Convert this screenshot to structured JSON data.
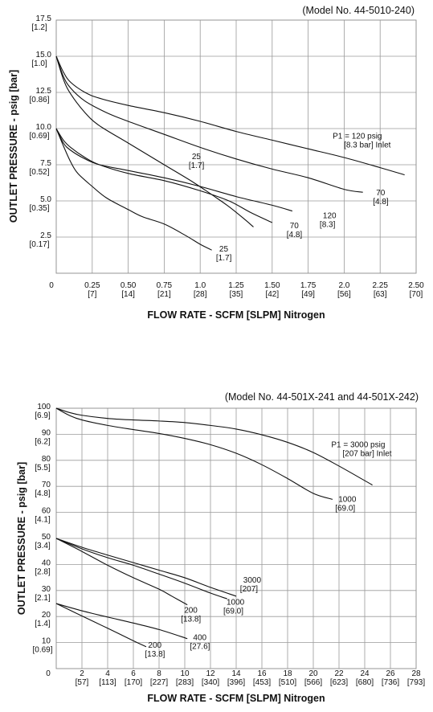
{
  "chart_data": [
    {
      "type": "line",
      "model_label": "(Model No. 44-5010-240)",
      "xlabel": "FLOW RATE - SCFM [SLPM] Nitrogen",
      "ylabel": "OUTLET PRESSURE - psig [bar]",
      "xlim": [
        0,
        2.5
      ],
      "ylim": [
        0,
        17.5
      ],
      "grid": true,
      "x_ticks": [
        {
          "value": 0,
          "l1": "0",
          "l2": ""
        },
        {
          "value": 0.25,
          "l1": "0.25",
          "l2": "[7]"
        },
        {
          "value": 0.5,
          "l1": "0.50",
          "l2": "[14]"
        },
        {
          "value": 0.75,
          "l1": "0.75",
          "l2": "[21]"
        },
        {
          "value": 1.0,
          "l1": "1.0",
          "l2": "[28]"
        },
        {
          "value": 1.25,
          "l1": "1.25",
          "l2": "[35]"
        },
        {
          "value": 1.5,
          "l1": "1.50",
          "l2": "[42]"
        },
        {
          "value": 1.75,
          "l1": "1.75",
          "l2": "[49]"
        },
        {
          "value": 2.0,
          "l1": "2.0",
          "l2": "[56]"
        },
        {
          "value": 2.25,
          "l1": "2.25",
          "l2": "[63]"
        },
        {
          "value": 2.5,
          "l1": "2.50",
          "l2": "[70]"
        }
      ],
      "y_ticks": [
        {
          "value": 2.5,
          "l1": "2.5",
          "l2": "[0.17]"
        },
        {
          "value": 5.0,
          "l1": "5.0",
          "l2": "[0.35]"
        },
        {
          "value": 7.5,
          "l1": "7.5",
          "l2": "[0.52]"
        },
        {
          "value": 10.0,
          "l1": "10.0",
          "l2": "[0.69]"
        },
        {
          "value": 12.5,
          "l1": "12.5",
          "l2": "[0.86]"
        },
        {
          "value": 15.0,
          "l1": "15.0",
          "l2": "[1.0]"
        },
        {
          "value": 17.5,
          "l1": "17.5",
          "l2": "[1.2]"
        }
      ],
      "series": [
        {
          "x": [
            0,
            0.05,
            0.1,
            0.2,
            0.3,
            0.5,
            0.75,
            1.0,
            1.25,
            1.5,
            1.75,
            2.0,
            2.25,
            2.42
          ],
          "y": [
            15,
            13.9,
            13.2,
            12.5,
            12.1,
            11.6,
            11.1,
            10.5,
            9.8,
            9.2,
            8.6,
            8.0,
            7.3,
            6.8
          ]
        },
        {
          "x": [
            0,
            0.05,
            0.1,
            0.2,
            0.35,
            0.5,
            0.75,
            1.0,
            1.25,
            1.5,
            1.75,
            2.0,
            2.13
          ],
          "y": [
            15,
            13.6,
            12.8,
            11.9,
            11.1,
            10.5,
            9.6,
            8.7,
            7.9,
            7.2,
            6.6,
            5.8,
            5.6
          ]
        },
        {
          "x": [
            0,
            0.05,
            0.1,
            0.2,
            0.3,
            0.5,
            0.75,
            0.95,
            1.1,
            1.2,
            1.3,
            1.37
          ],
          "y": [
            15,
            13.4,
            12.4,
            11.1,
            10.2,
            9.0,
            7.5,
            6.3,
            5.3,
            4.6,
            3.8,
            3.2
          ]
        },
        {
          "x": [
            0,
            0.05,
            0.1,
            0.2,
            0.3,
            0.5,
            0.75,
            1.0,
            1.25,
            1.5,
            1.64
          ],
          "y": [
            10,
            9.0,
            8.5,
            7.9,
            7.5,
            7.1,
            6.6,
            6.0,
            5.3,
            4.7,
            4.3
          ]
        },
        {
          "x": [
            0,
            0.05,
            0.1,
            0.2,
            0.3,
            0.5,
            0.75,
            1.0,
            1.2,
            1.35,
            1.5
          ],
          "y": [
            10,
            9.2,
            8.7,
            8.0,
            7.5,
            6.9,
            6.4,
            5.7,
            5.0,
            4.2,
            3.5
          ]
        },
        {
          "x": [
            0,
            0.05,
            0.1,
            0.15,
            0.25,
            0.35,
            0.5,
            0.6,
            0.75,
            0.9,
            1.0,
            1.08
          ],
          "y": [
            10,
            8.8,
            7.7,
            6.9,
            6.0,
            5.2,
            4.4,
            3.9,
            3.4,
            2.6,
            2.0,
            1.6
          ]
        }
      ],
      "annotations": [
        {
          "lines": [
            "P1 = 120 psig",
            "[8.3 bar] Inlet"
          ],
          "x": 1.92,
          "y": 9.3,
          "indent": [
            0,
            14
          ]
        },
        {
          "lines": [
            "70",
            "[4.8]"
          ],
          "x": 2.2,
          "y": 5.4,
          "indent": [
            4,
            0
          ]
        },
        {
          "lines": [
            "120",
            "[8.3]"
          ],
          "x": 1.83,
          "y": 3.8,
          "indent": [
            4,
            0
          ]
        },
        {
          "lines": [
            "70",
            "[4.8]"
          ],
          "x": 1.6,
          "y": 3.1,
          "indent": [
            4,
            0
          ]
        },
        {
          "lines": [
            "25",
            "[1.7]"
          ],
          "x": 0.92,
          "y": 7.9,
          "indent": [
            4,
            0
          ]
        },
        {
          "lines": [
            "25",
            "[1.7]"
          ],
          "x": 1.11,
          "y": 1.5,
          "indent": [
            4,
            0
          ]
        }
      ]
    },
    {
      "type": "line",
      "model_label": "(Model No. 44-501X-241 and 44-501X-242)",
      "xlabel": "FLOW RATE - SCFM [SLPM] Nitrogen",
      "ylabel": "OUTLET PRESSURE - psig [bar]",
      "xlim": [
        0,
        28
      ],
      "ylim": [
        0,
        100
      ],
      "grid": true,
      "x_ticks": [
        {
          "value": 0,
          "l1": "0",
          "l2": ""
        },
        {
          "value": 2,
          "l1": "2",
          "l2": "[57]"
        },
        {
          "value": 4,
          "l1": "4",
          "l2": "[113]"
        },
        {
          "value": 6,
          "l1": "6",
          "l2": "[170]"
        },
        {
          "value": 8,
          "l1": "8",
          "l2": "[227]"
        },
        {
          "value": 10,
          "l1": "10",
          "l2": "[283]"
        },
        {
          "value": 12,
          "l1": "12",
          "l2": "[340]"
        },
        {
          "value": 14,
          "l1": "14",
          "l2": "[396]"
        },
        {
          "value": 16,
          "l1": "16",
          "l2": "[453]"
        },
        {
          "value": 18,
          "l1": "18",
          "l2": "[510]"
        },
        {
          "value": 20,
          "l1": "20",
          "l2": "[566]"
        },
        {
          "value": 22,
          "l1": "22",
          "l2": "[623]"
        },
        {
          "value": 24,
          "l1": "24",
          "l2": "[680]"
        },
        {
          "value": 26,
          "l1": "26",
          "l2": "[736]"
        },
        {
          "value": 28,
          "l1": "28",
          "l2": "[793]"
        }
      ],
      "y_ticks": [
        {
          "value": 10,
          "l1": "10",
          "l2": "[0.69]"
        },
        {
          "value": 20,
          "l1": "20",
          "l2": "[1.4]"
        },
        {
          "value": 30,
          "l1": "30",
          "l2": "[2.1]"
        },
        {
          "value": 40,
          "l1": "40",
          "l2": "[2.8]"
        },
        {
          "value": 50,
          "l1": "50",
          "l2": "[3.4]"
        },
        {
          "value": 60,
          "l1": "60",
          "l2": "[4.1]"
        },
        {
          "value": 70,
          "l1": "70",
          "l2": "[4.8]"
        },
        {
          "value": 80,
          "l1": "80",
          "l2": "[5.5]"
        },
        {
          "value": 90,
          "l1": "90",
          "l2": "[6.2]"
        },
        {
          "value": 100,
          "l1": "100",
          "l2": "[6.9]"
        }
      ],
      "series": [
        {
          "x": [
            0,
            1,
            2,
            4,
            6,
            8,
            10,
            12,
            14,
            16,
            18,
            20,
            22,
            24,
            24.6
          ],
          "y": [
            100,
            98.4,
            97.3,
            96.1,
            95.5,
            95.1,
            94.5,
            93.4,
            92.0,
            89.8,
            86.9,
            83.0,
            77.8,
            72.2,
            70.5
          ]
        },
        {
          "x": [
            0,
            1,
            2,
            4,
            6,
            8,
            10,
            12,
            14,
            16,
            18,
            20,
            21.5
          ],
          "y": [
            100,
            97.3,
            95.5,
            93.4,
            91.8,
            90.3,
            88.4,
            86.0,
            82.7,
            78.3,
            73.0,
            67.3,
            65.0
          ]
        },
        {
          "x": [
            0,
            2,
            4,
            6,
            8,
            10,
            12,
            14
          ],
          "y": [
            50,
            46.6,
            43.6,
            40.7,
            37.8,
            34.9,
            31.2,
            27.8
          ]
        },
        {
          "x": [
            0,
            2,
            4,
            6,
            8,
            10,
            12,
            13.3
          ],
          "y": [
            50,
            46.0,
            42.6,
            39.7,
            36.3,
            32.8,
            29.0,
            26.8
          ]
        },
        {
          "x": [
            0,
            2,
            4,
            6,
            8,
            9,
            10.2
          ],
          "y": [
            50,
            45.0,
            39.7,
            34.9,
            30.5,
            27.8,
            24.5
          ]
        },
        {
          "x": [
            0,
            2,
            4,
            6,
            8,
            10.2
          ],
          "y": [
            25,
            22.2,
            19.8,
            17.5,
            15.0,
            11.5
          ]
        },
        {
          "x": [
            0,
            2,
            4,
            6,
            7.0
          ],
          "y": [
            25,
            20.2,
            15.5,
            10.7,
            8.4
          ]
        }
      ],
      "annotations": [
        {
          "lines": [
            "P1 = 3000 psig",
            "[207 bar] Inlet"
          ],
          "x": 21.4,
          "y": 85.0,
          "indent": [
            0,
            14
          ]
        },
        {
          "lines": [
            "1000",
            "[69.0]"
          ],
          "x": 21.7,
          "y": 64.0,
          "indent": [
            4,
            0
          ]
        },
        {
          "lines": [
            "3000",
            "[207]"
          ],
          "x": 14.3,
          "y": 33.0,
          "indent": [
            4,
            0
          ]
        },
        {
          "lines": [
            "1000",
            "[69.0]"
          ],
          "x": 13.0,
          "y": 24.5,
          "indent": [
            4,
            0
          ]
        },
        {
          "lines": [
            "200",
            "[13.8]"
          ],
          "x": 9.7,
          "y": 21.5,
          "indent": [
            4,
            0
          ]
        },
        {
          "lines": [
            "400",
            "[27.6]"
          ],
          "x": 10.4,
          "y": 11.0,
          "indent": [
            4,
            0
          ]
        },
        {
          "lines": [
            "200",
            "[13.8]"
          ],
          "x": 6.9,
          "y": 8.0,
          "indent": [
            4,
            0
          ]
        }
      ]
    }
  ]
}
